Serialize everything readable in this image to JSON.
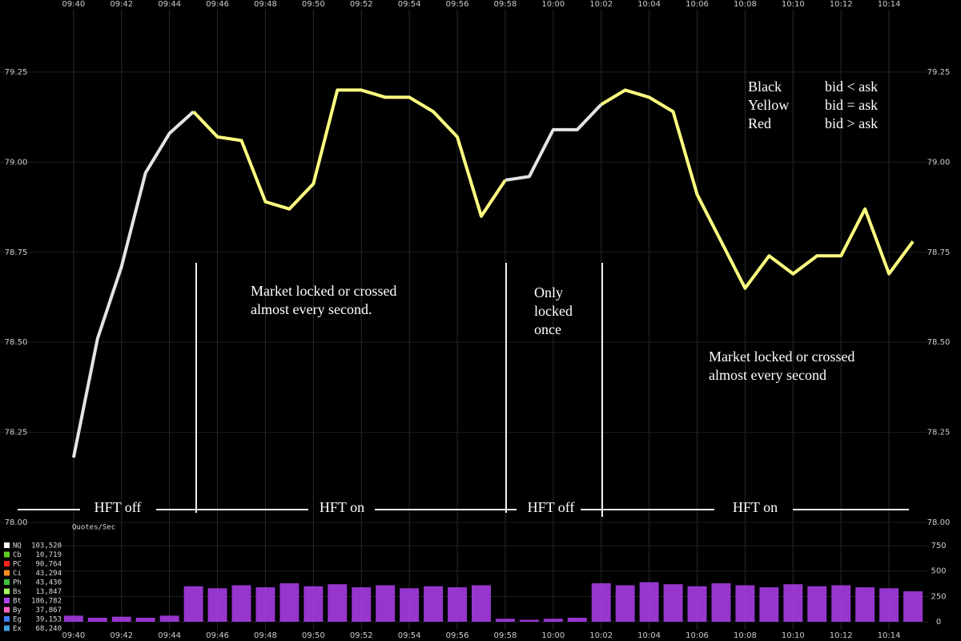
{
  "chart_data": [
    {
      "type": "line",
      "x": [
        "09:40",
        "09:41",
        "09:42",
        "09:43",
        "09:44",
        "09:45",
        "09:46",
        "09:47",
        "09:48",
        "09:49",
        "09:50",
        "09:51",
        "09:52",
        "09:53",
        "09:54",
        "09:55",
        "09:56",
        "09:57",
        "09:58",
        "09:59",
        "10:00",
        "10:01",
        "10:02",
        "10:03",
        "10:04",
        "10:05",
        "10:06",
        "10:07",
        "10:08",
        "10:09",
        "10:10",
        "10:11",
        "10:12",
        "10:13",
        "10:14",
        "10:15"
      ],
      "series": [
        {
          "color": "#e4e4e4",
          "values": [
            78.18,
            78.51,
            78.71,
            78.97,
            79.08,
            79.14,
            null,
            null,
            null,
            null,
            null,
            null,
            null,
            null,
            null,
            null,
            null,
            null,
            78.95,
            78.96,
            79.09,
            79.09,
            79.16,
            null,
            null,
            null,
            null,
            null,
            null,
            null,
            null,
            null,
            null,
            null,
            null,
            null
          ]
        },
        {
          "color": "#ffff80",
          "values": [
            null,
            null,
            null,
            null,
            null,
            79.14,
            79.07,
            79.06,
            78.89,
            78.87,
            78.94,
            79.2,
            79.2,
            79.18,
            79.18,
            79.14,
            79.07,
            78.85,
            78.95,
            null,
            null,
            null,
            79.16,
            79.2,
            79.18,
            79.14,
            78.91,
            78.78,
            78.65,
            78.74,
            78.69,
            78.74,
            78.74,
            78.87,
            78.69,
            78.78
          ]
        }
      ],
      "xlim": [
        "09:37",
        "10:16"
      ],
      "xticks": [
        "09:40",
        "09:42",
        "09:44",
        "09:46",
        "09:48",
        "09:50",
        "09:52",
        "09:54",
        "09:56",
        "09:58",
        "10:00",
        "10:02",
        "10:04",
        "10:06",
        "10:08",
        "10:10",
        "10:12",
        "10:14"
      ],
      "ylim": [
        78,
        79.45
      ],
      "yticks": [
        {
          "value": 78,
          "label": "78.00"
        },
        {
          "value": 78.25,
          "label": "78.25"
        },
        {
          "value": 78.5,
          "label": "78.50"
        },
        {
          "value": 78.75,
          "label": "78.75"
        },
        {
          "value": 79,
          "label": "79.00"
        },
        {
          "value": 79.25,
          "label": "79.25"
        }
      ],
      "grid": true,
      "legend": [
        {
          "label": "Black",
          "meaning": "bid < ask"
        },
        {
          "label": "Yellow",
          "meaning": "bid = ask"
        },
        {
          "label": "Red",
          "meaning": "bid > ask"
        }
      ],
      "annotations": [
        [
          "Market locked or crossed",
          "almost every second."
        ],
        [
          "Only",
          "locked",
          "once"
        ],
        [
          "Market locked or crossed",
          "almost every second"
        ]
      ],
      "regimes": [
        "HFT off",
        "HFT on",
        "HFT off",
        "HFT on"
      ]
    },
    {
      "type": "bar",
      "title": "Quotes/Sec",
      "x": [
        "09:40",
        "09:41",
        "09:42",
        "09:43",
        "09:44",
        "09:45",
        "09:46",
        "09:47",
        "09:48",
        "09:49",
        "09:50",
        "09:51",
        "09:52",
        "09:53",
        "09:54",
        "09:55",
        "09:56",
        "09:57",
        "09:58",
        "09:59",
        "10:00",
        "10:01",
        "10:02",
        "10:03",
        "10:04",
        "10:05",
        "10:06",
        "10:07",
        "10:08",
        "10:09",
        "10:10",
        "10:11",
        "10:12",
        "10:13",
        "10:14",
        "10:15"
      ],
      "values": [
        60,
        40,
        50,
        40,
        60,
        350,
        330,
        360,
        340,
        380,
        350,
        370,
        340,
        360,
        330,
        350,
        340,
        360,
        30,
        20,
        30,
        40,
        380,
        360,
        390,
        370,
        350,
        380,
        360,
        340,
        370,
        350,
        360,
        340,
        330,
        300
      ],
      "color": "#b040f0",
      "ylim": [
        0,
        900
      ],
      "yticks": [
        0,
        250,
        500,
        750
      ],
      "legend": [
        {
          "name": "NQ",
          "count": "103,520",
          "color": "#ffffff"
        },
        {
          "name": "Cb",
          "count": "10,719",
          "color": "#60d020"
        },
        {
          "name": "PC",
          "count": "90,764",
          "color": "#ff2020"
        },
        {
          "name": "Ci",
          "count": "43,294",
          "color": "#ff9020"
        },
        {
          "name": "Ph",
          "count": "43,430",
          "color": "#40c040"
        },
        {
          "name": "Bs",
          "count": "13,847",
          "color": "#a0ff60"
        },
        {
          "name": "Bt",
          "count": "186,782",
          "color": "#b040f0"
        },
        {
          "name": "By",
          "count": "37,867",
          "color": "#ff60c0"
        },
        {
          "name": "Eg",
          "count": "39,153",
          "color": "#4080ff"
        },
        {
          "name": "Ex",
          "count": "68,240",
          "color": "#40a0e0"
        }
      ]
    }
  ]
}
